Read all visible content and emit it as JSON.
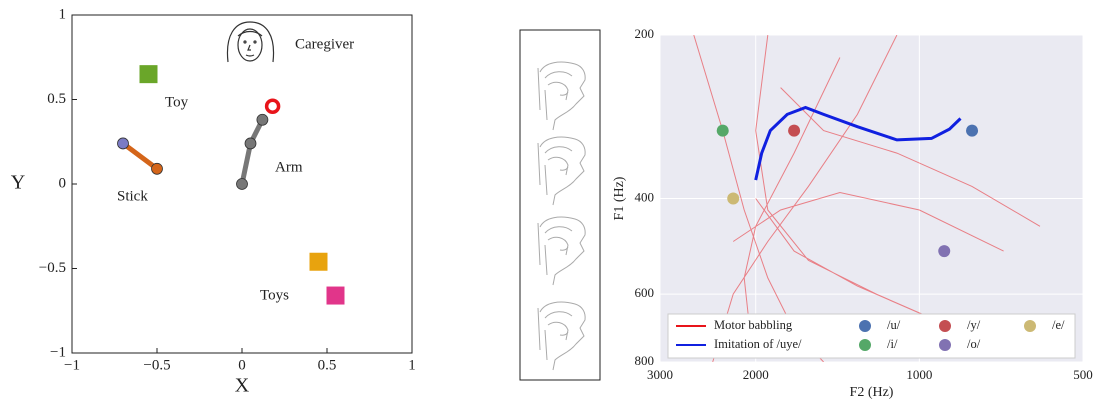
{
  "chart_data": [
    {
      "type": "scatter",
      "xlabel": "X",
      "ylabel": "Y",
      "xlim": [
        -1,
        1
      ],
      "ylim": [
        -1,
        1
      ],
      "xticks": [
        {
          "value": -1,
          "label": "−1"
        },
        {
          "value": -0.5,
          "label": "−0.5"
        },
        0,
        0.5,
        1
      ],
      "yticks": [
        {
          "value": -1,
          "label": "−1"
        },
        {
          "value": -0.5,
          "label": "−0.5"
        },
        0,
        0.5,
        1
      ],
      "annotations": [
        "Caregiver",
        "Toy",
        "Arm",
        "Stick",
        "Toys"
      ],
      "series": [
        {
          "marker": "square",
          "color": "#6aa629",
          "x": [
            -0.55
          ],
          "values": [
            0.65
          ]
        },
        {
          "marker": "square",
          "color": "#e8a30e",
          "x": [
            0.45
          ],
          "values": [
            -0.46
          ]
        },
        {
          "marker": "square",
          "color": "#e1358a",
          "x": [
            0.55
          ],
          "values": [
            -0.66
          ]
        },
        {
          "marker": "circle",
          "color": "#d4651a",
          "marker_colors": [
            "#7b7bc4",
            "#d4651a"
          ],
          "x": [
            -0.7,
            -0.5
          ],
          "values": [
            0.24,
            0.09
          ]
        },
        {
          "marker": "circle",
          "color": "#777777",
          "x": [
            0,
            0.05,
            0.12
          ],
          "values": [
            0,
            0.24,
            0.38
          ]
        },
        {
          "marker": "ring",
          "color": "#e8141a",
          "x": [
            0.18
          ],
          "values": [
            0.46
          ]
        }
      ]
    },
    {
      "type": "line",
      "xlabel": "F2 (Hz)",
      "ylabel": "F1 (Hz)",
      "xscale": "log",
      "yscale": "log",
      "grid": true,
      "xlim": [
        3000,
        500
      ],
      "ylim": [
        800,
        200
      ],
      "xticks": [
        3000,
        2000,
        1000,
        500
      ],
      "yticks": [
        200,
        400,
        600,
        800
      ],
      "legend": "lower",
      "series": [
        {
          "name": "Motor babbling",
          "color": "#e8141a",
          "width": 1,
          "x": [
            2600,
            2300,
            2100,
            1900,
            1700,
            1500,
            null,
            1900,
            2000,
            1900,
            1600,
            1200,
            900,
            null,
            1400,
            1700,
            2000,
            2100,
            2050,
            null,
            2200,
            1800,
            1400,
            1000,
            700,
            null,
            1100,
            1300,
            1600,
            1900,
            2200,
            2400,
            null,
            1800,
            1500,
            1100,
            800,
            600,
            null,
            2000,
            1700,
            1300,
            1000,
            800
          ],
          "values": [
            200,
            300,
            420,
            560,
            700,
            800,
            null,
            200,
            300,
            420,
            520,
            600,
            680,
            null,
            220,
            330,
            450,
            560,
            700,
            null,
            480,
            420,
            390,
            420,
            500,
            null,
            200,
            280,
            380,
            480,
            600,
            800,
            null,
            250,
            300,
            330,
            380,
            450,
            null,
            400,
            500,
            580,
            650,
            750
          ]
        },
        {
          "name": "Imitation of /uye/",
          "color": "#1020e0",
          "width": 3,
          "x": [
            2000,
            1950,
            1880,
            1750,
            1620,
            1500,
            1300,
            1100,
            950,
            880,
            840
          ],
          "values": [
            370,
            330,
            300,
            280,
            272,
            280,
            295,
            312,
            310,
            298,
            285
          ]
        },
        {
          "name": "/u/",
          "color": "#4c72b0",
          "marker": "circle",
          "x": [
            800
          ],
          "values": [
            300
          ]
        },
        {
          "name": "/i/",
          "color": "#55a868",
          "marker": "circle",
          "x": [
            2300
          ],
          "values": [
            300
          ]
        },
        {
          "name": "/y/",
          "color": "#c44e52",
          "marker": "circle",
          "x": [
            1700
          ],
          "values": [
            300
          ]
        },
        {
          "name": "/o/",
          "color": "#8172b2",
          "marker": "circle",
          "x": [
            900
          ],
          "values": [
            500
          ]
        },
        {
          "name": "/e/",
          "color": "#ccb974",
          "marker": "circle",
          "x": [
            2200
          ],
          "values": [
            400
          ]
        }
      ]
    }
  ]
}
